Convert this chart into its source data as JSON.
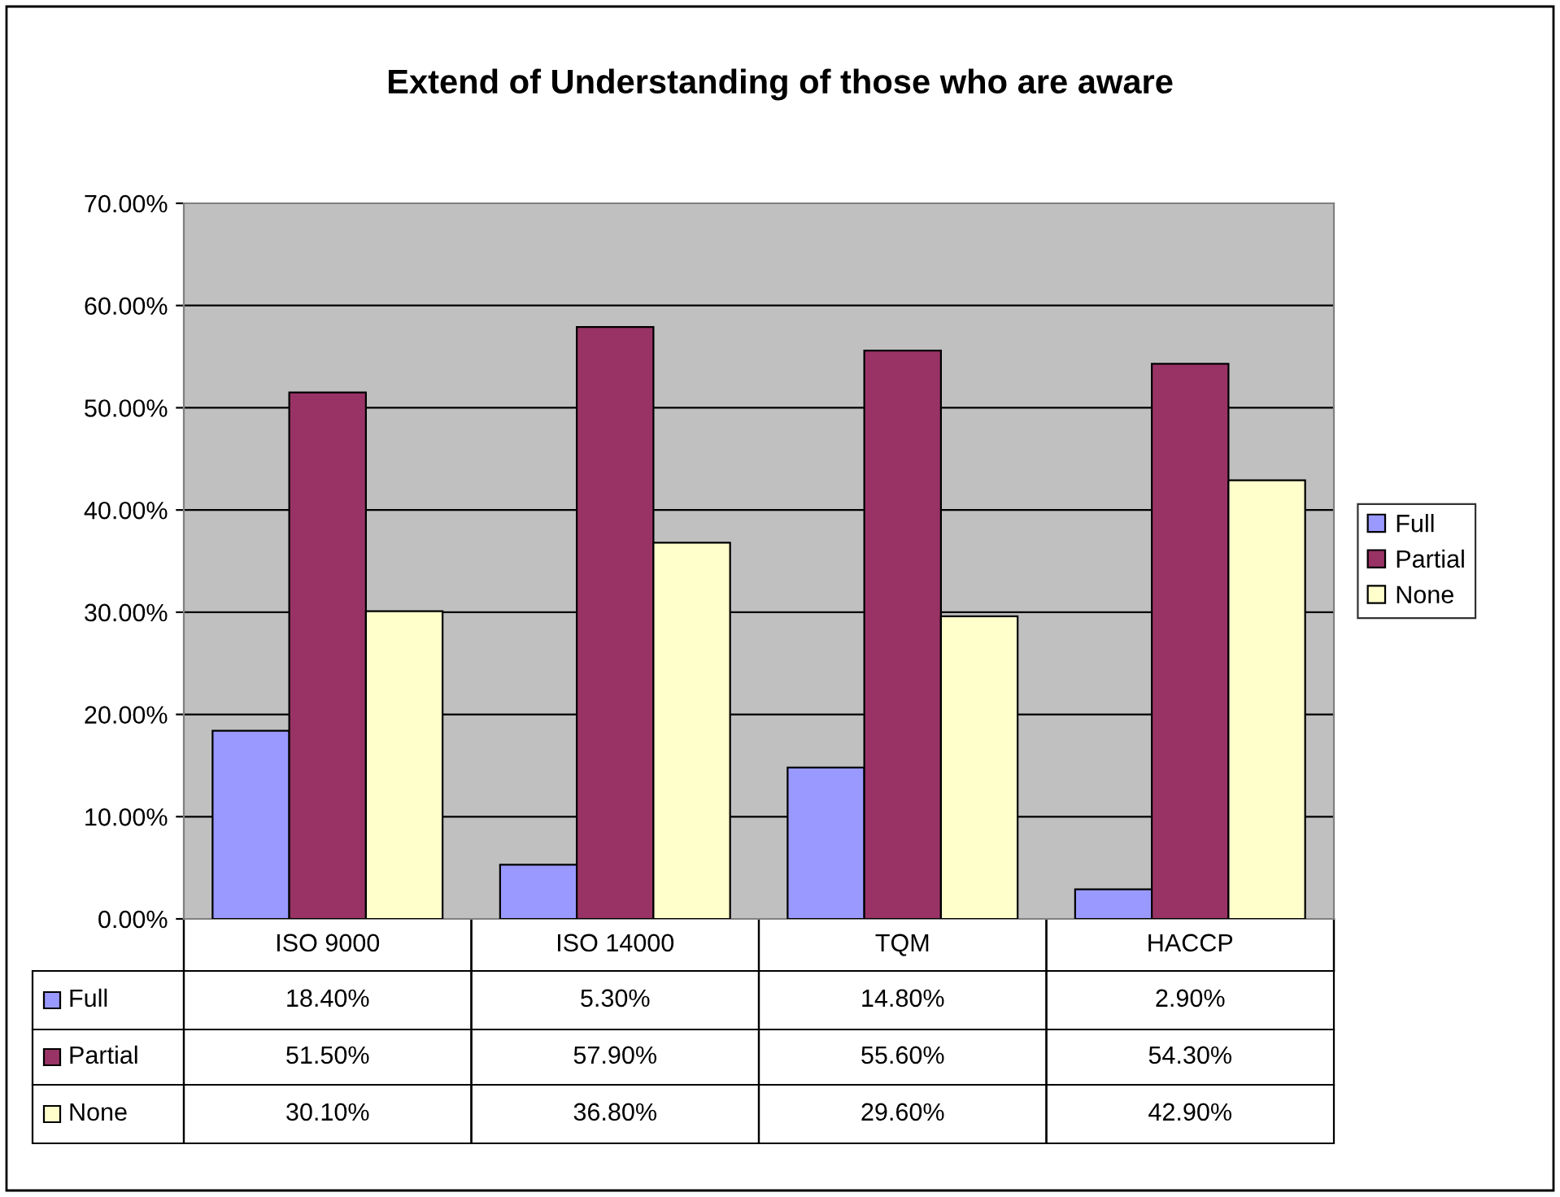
{
  "chart_data": {
    "type": "bar",
    "title": "Extend of Understanding of those who are aware",
    "categories": [
      "ISO 9000",
      "ISO 14000",
      "TQM",
      "HACCP"
    ],
    "series": [
      {
        "name": "Full",
        "color": "#9999ff",
        "values": [
          18.4,
          5.3,
          14.8,
          2.9
        ],
        "value_labels": [
          "18.40%",
          "5.30%",
          "14.80%",
          "2.90%"
        ]
      },
      {
        "name": "Partial",
        "color": "#993366",
        "values": [
          51.5,
          57.9,
          55.6,
          54.3
        ],
        "value_labels": [
          "51.50%",
          "57.90%",
          "55.60%",
          "54.30%"
        ]
      },
      {
        "name": "None",
        "color": "#ffffcc",
        "values": [
          30.1,
          36.8,
          29.6,
          42.9
        ],
        "value_labels": [
          "30.10%",
          "36.80%",
          "29.60%",
          "42.90%"
        ]
      }
    ],
    "ylim": [
      0,
      70
    ],
    "yticks": [
      {
        "value": 0,
        "label": "0.00%"
      },
      {
        "value": 10,
        "label": "10.00%"
      },
      {
        "value": 20,
        "label": "20.00%"
      },
      {
        "value": 30,
        "label": "30.00%"
      },
      {
        "value": 40,
        "label": "40.00%"
      },
      {
        "value": 50,
        "label": "50.00%"
      },
      {
        "value": 60,
        "label": "60.00%"
      },
      {
        "value": 70,
        "label": "70.00%"
      }
    ],
    "grid": "y",
    "legend": "right"
  }
}
